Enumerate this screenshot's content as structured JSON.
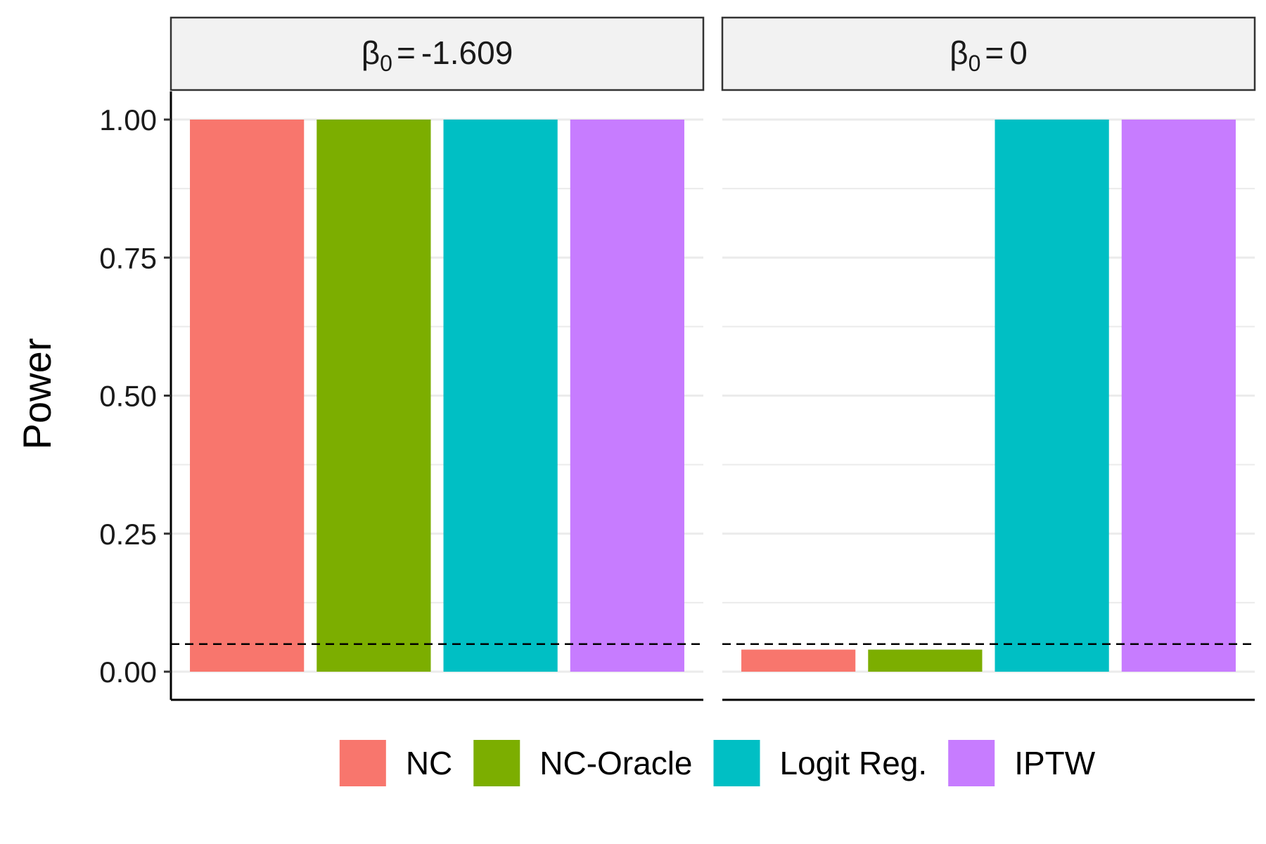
{
  "chart_data": {
    "type": "bar",
    "ylabel": "Power",
    "ylim": [
      0,
      1.05
    ],
    "y_ticks": [
      0,
      0.25,
      0.5,
      0.75,
      1
    ],
    "y_tick_labels": [
      "0.00",
      "0.25",
      "0.50",
      "0.75",
      "1.00"
    ],
    "reference_line": {
      "y": 0.05,
      "style": "dashed"
    },
    "categories": [
      "NC",
      "NC-Oracle",
      "Logit Reg.",
      "IPTW"
    ],
    "colors": [
      "#F8766D",
      "#7CAE00",
      "#00BFC4",
      "#C77CFF"
    ],
    "grid": true,
    "legend_position": "bottom",
    "panels": [
      {
        "strip": {
          "symbol": "β",
          "subscript": "0",
          "equals": "=",
          "value": "-1.609"
        },
        "values": [
          1.0,
          1.0,
          1.0,
          1.0
        ]
      },
      {
        "strip": {
          "symbol": "β",
          "subscript": "0",
          "equals": "=",
          "value": "0"
        },
        "values": [
          0.04,
          0.04,
          1.0,
          1.0
        ]
      }
    ]
  }
}
